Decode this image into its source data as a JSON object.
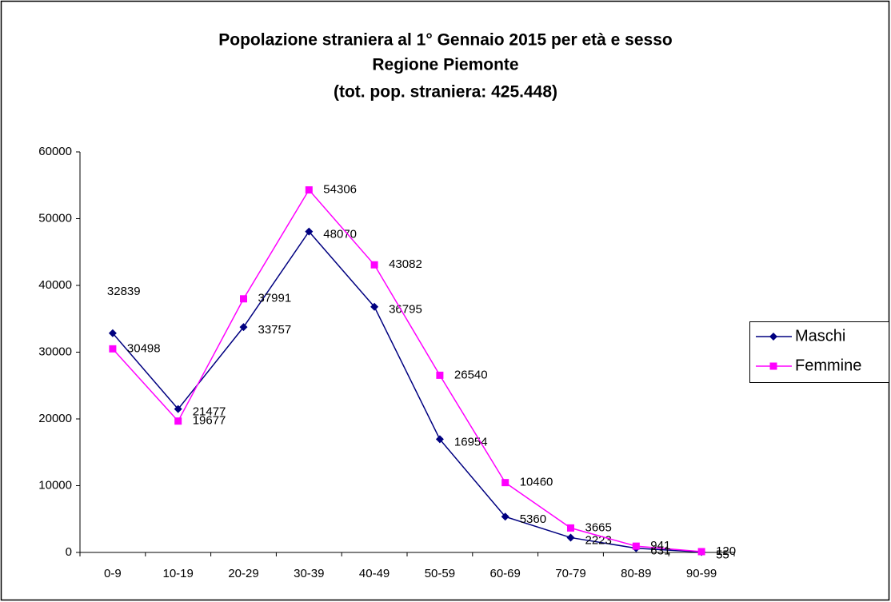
{
  "chart_data": {
    "type": "line",
    "title": [
      "Popolazione straniera al 1° Gennaio 2015 per età e sesso",
      "Regione Piemonte",
      "(tot. pop. straniera: 425.448)"
    ],
    "categories": [
      "0-9",
      "10-19",
      "20-29",
      "30-39",
      "40-49",
      "50-59",
      "60-69",
      "70-79",
      "80-89",
      "90-99"
    ],
    "series": [
      {
        "name": "Maschi",
        "color": "#000080",
        "marker": "diamond",
        "values": [
          32839,
          21477,
          33757,
          48070,
          36795,
          16954,
          5360,
          2223,
          631,
          55
        ]
      },
      {
        "name": "Femmine",
        "color": "#ff00ff",
        "marker": "square",
        "values": [
          30498,
          19677,
          37991,
          54306,
          43082,
          26540,
          10460,
          3665,
          941,
          120
        ]
      }
    ],
    "ylim": [
      0,
      60000
    ],
    "yticks": [
      0,
      10000,
      20000,
      30000,
      40000,
      50000,
      60000
    ],
    "grid": false,
    "legend": "right",
    "data_labels": true
  }
}
